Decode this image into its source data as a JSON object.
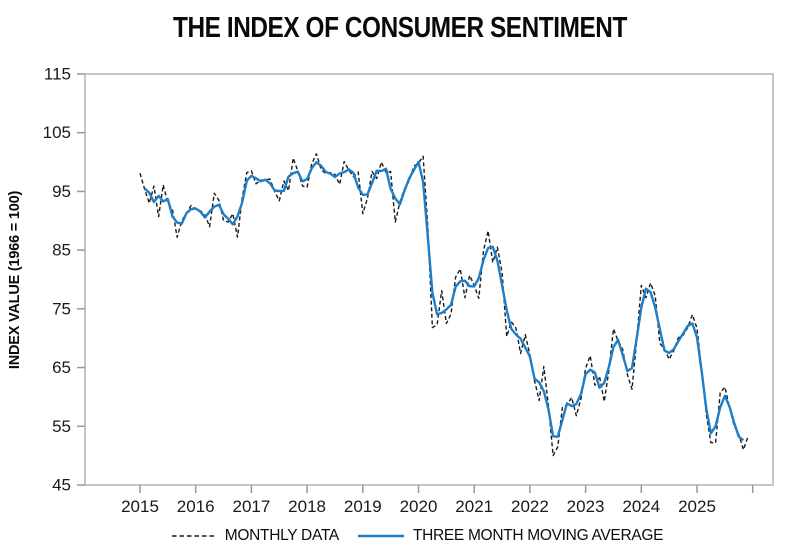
{
  "title": "THE INDEX OF CONSUMER SENTIMENT",
  "y_axis_label": "INDEX VALUE (1966 = 100)",
  "legend": {
    "monthly_label": "MONTHLY DATA",
    "ma_label": "THREE MONTH MOVING AVERAGE"
  },
  "colors": {
    "monthly_line": "#1a1a1a",
    "ma_line": "#1e7ec8",
    "frame": "#b3b3b3",
    "tick": "#999999",
    "text": "#1a1a1a"
  },
  "chart_data": {
    "type": "line",
    "title": "THE INDEX OF CONSUMER SENTIMENT",
    "xlabel": "",
    "ylabel": "INDEX VALUE (1966 = 100)",
    "ylim": [
      45,
      115
    ],
    "y_ticks": [
      45,
      55,
      65,
      75,
      85,
      95,
      105,
      115
    ],
    "x_tick_labels": [
      "2015",
      "2016",
      "2017",
      "2018",
      "2019",
      "2020",
      "2021",
      "2022",
      "2023",
      "2024",
      "2025"
    ],
    "start_month": "2015-01",
    "end_month": "2025-12",
    "grid": false,
    "legend_position": "bottom",
    "series": [
      {
        "name": "MONTHLY DATA",
        "style": "dashed",
        "color": "#1a1a1a",
        "values": [
          98.1,
          95.4,
          93.0,
          95.9,
          90.7,
          96.1,
          93.1,
          91.9,
          87.2,
          90.0,
          91.3,
          92.6,
          92.0,
          91.7,
          91.0,
          89.0,
          94.7,
          93.5,
          90.0,
          89.8,
          91.2,
          87.2,
          93.8,
          98.2,
          98.5,
          96.3,
          96.9,
          97.0,
          97.1,
          95.0,
          93.4,
          96.8,
          95.1,
          100.7,
          98.5,
          95.9,
          95.7,
          99.7,
          101.4,
          98.8,
          98.0,
          98.2,
          97.9,
          96.2,
          100.1,
          98.6,
          97.5,
          98.3,
          91.2,
          93.8,
          98.4,
          97.2,
          100.0,
          98.2,
          98.4,
          89.8,
          93.2,
          95.5,
          96.8,
          99.3,
          99.8,
          101.0,
          89.1,
          71.8,
          72.3,
          78.1,
          72.5,
          74.1,
          80.4,
          81.8,
          76.9,
          80.7,
          79.0,
          76.8,
          84.9,
          88.3,
          82.9,
          85.5,
          81.2,
          70.3,
          72.8,
          71.7,
          67.4,
          70.6,
          67.2,
          62.8,
          59.4,
          65.2,
          58.4,
          50.0,
          51.5,
          58.2,
          58.6,
          59.9,
          56.8,
          59.7,
          64.9,
          67.0,
          62.0,
          63.5,
          59.2,
          64.4,
          71.6,
          69.5,
          68.1,
          63.8,
          61.3,
          69.7,
          79.0,
          76.9,
          79.4,
          77.2,
          69.1,
          68.2,
          66.4,
          67.9,
          70.1,
          70.5,
          71.8,
          74.0,
          71.7,
          64.7,
          57.0,
          52.2,
          52.2,
          60.7,
          61.7,
          58.2,
          55.1,
          53.6,
          51.0,
          53.3
        ]
      },
      {
        "name": "THREE MONTH MOVING AVERAGE",
        "style": "solid",
        "color": "#1e7ec8",
        "derived_from": "centered 3-month moving average of MONTHLY DATA"
      }
    ]
  }
}
